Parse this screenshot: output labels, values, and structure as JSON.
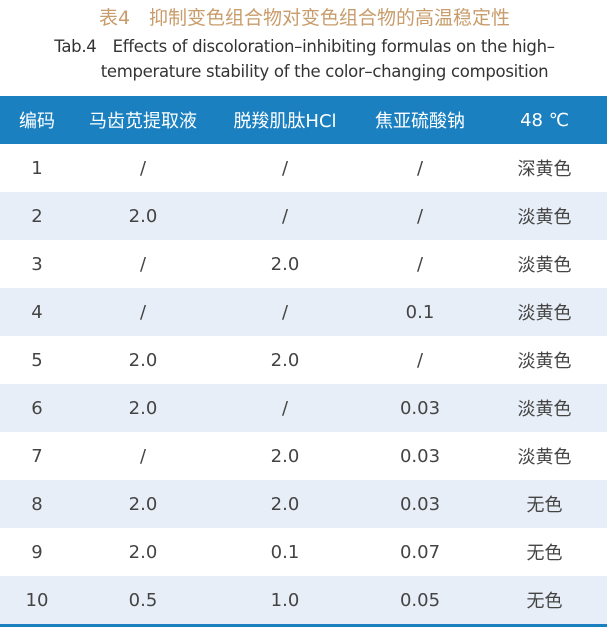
{
  "title_cn": "表4　抑制变色组合物对变色组合物的高温稳定性",
  "title_en_1": "Tab.4　Effects of discoloration–inhibiting formulas on the high–",
  "title_en_2": "temperature stability of  the color–changing composition",
  "headers": [
    "编码",
    "马齿苋提取液",
    "脱羧肌肽HCl",
    "焦亚硫酸钠",
    "48 ℃"
  ],
  "rows": [
    [
      "1",
      "/",
      "/",
      "/",
      "深黄色"
    ],
    [
      "2",
      "2.0",
      "/",
      "/",
      "淡黄色"
    ],
    [
      "3",
      "/",
      "2.0",
      "/",
      "淡黄色"
    ],
    [
      "4",
      "/",
      "/",
      "0.1",
      "淡黄色"
    ],
    [
      "5",
      "2.0",
      "2.0",
      "/",
      "淡黄色"
    ],
    [
      "6",
      "2.0",
      "/",
      "0.03",
      "淡黄色"
    ],
    [
      "7",
      "/",
      "2.0",
      "0.03",
      "淡黄色"
    ],
    [
      "8",
      "2.0",
      "2.0",
      "0.03",
      "无色"
    ],
    [
      "9",
      "2.0",
      "0.1",
      "0.07",
      "无色"
    ],
    [
      "10",
      "0.5",
      "1.0",
      "0.05",
      "无色"
    ]
  ],
  "colors": {
    "header": "#1a80c0",
    "title": "#c99c6b",
    "stripe": "#e7eef7"
  }
}
